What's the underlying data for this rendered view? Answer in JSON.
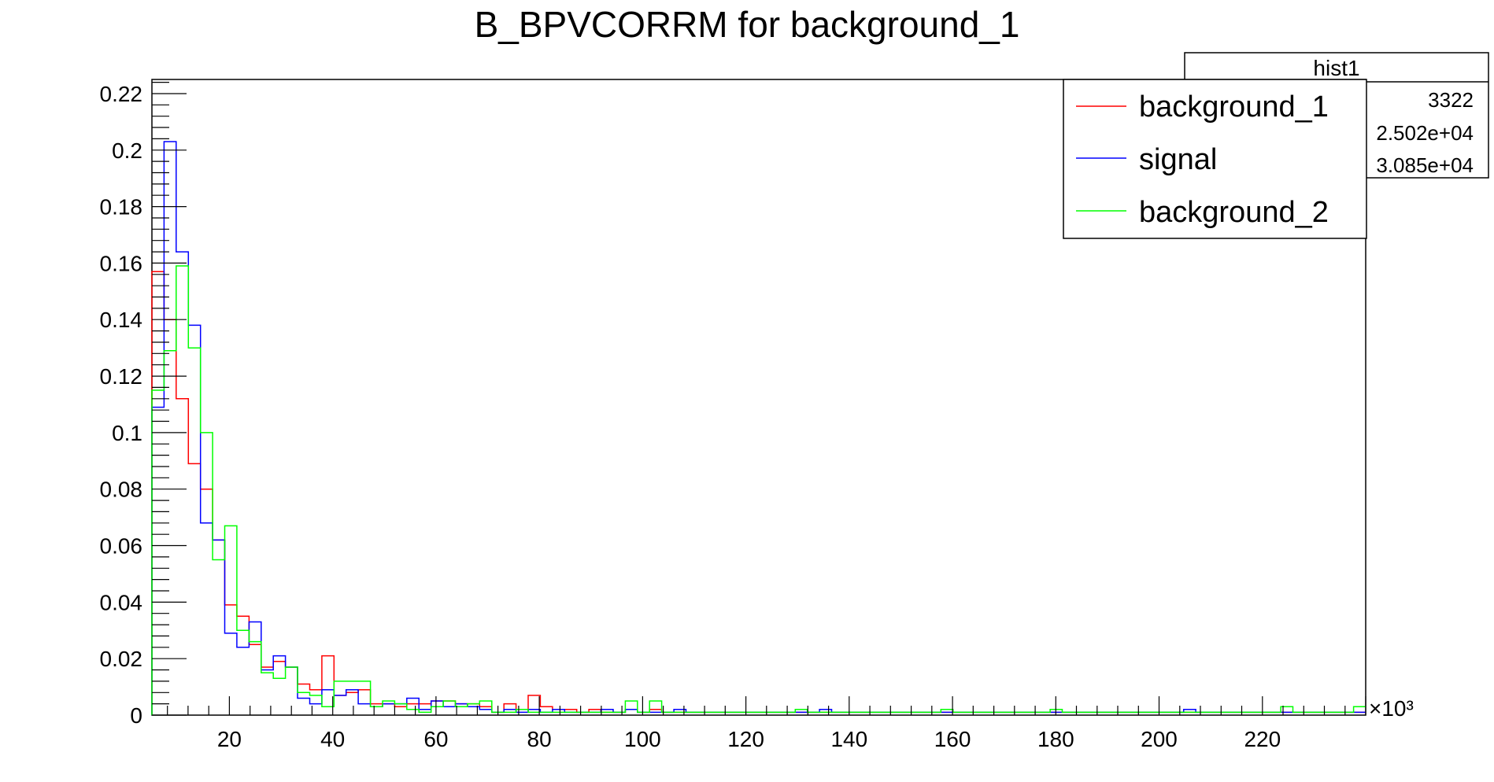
{
  "chart_data": {
    "type": "histogram",
    "title": "B_BPVCORRM for background_1",
    "xlabel": "",
    "ylabel": "",
    "x_multiplier": "×10³",
    "xlim": [
      5,
      240
    ],
    "ylim": [
      0,
      0.225
    ],
    "xticks": [
      20,
      40,
      60,
      80,
      100,
      120,
      140,
      160,
      180,
      200,
      220
    ],
    "yticks": [
      0,
      0.02,
      0.04,
      0.06,
      0.08,
      0.1,
      0.12,
      0.14,
      0.16,
      0.18,
      0.2,
      0.22
    ],
    "ytick_labels": [
      "0",
      "0.02",
      "0.04",
      "0.06",
      "0.08",
      "0.1",
      "0.12",
      "0.14",
      "0.16",
      "0.18",
      "0.2",
      "0.22"
    ],
    "bin_start": 5,
    "bin_width": 2.35,
    "series": [
      {
        "name": "background_1",
        "color": "#ff0000",
        "values": [
          0.157,
          0.14,
          0.112,
          0.089,
          0.08,
          0.062,
          0.039,
          0.035,
          0.025,
          0.017,
          0.019,
          0.017,
          0.011,
          0.009,
          0.021,
          0.007,
          0.008,
          0.009,
          0.004,
          0.004,
          0.003,
          0.004,
          0.004,
          0.005,
          0.005,
          0.004,
          0.004,
          0.003,
          0.001,
          0.004,
          0.002,
          0.007,
          0.003,
          0.002,
          0.002,
          0.001,
          0.002,
          0.001,
          0.001,
          0.002,
          0.001,
          0.002,
          0.001,
          0.001,
          0.001,
          0.001,
          0.001,
          0.001,
          0.001,
          0.001,
          0.001,
          0.001,
          0.001,
          0.001,
          0.001,
          0.001,
          0.001,
          0.001,
          0.001,
          0.001,
          0.001,
          0.001,
          0.001,
          0.001,
          0.001,
          0.001,
          0.001,
          0.001,
          0.001,
          0.001,
          0.001,
          0.001,
          0.001,
          0.001,
          0.001,
          0.001,
          0.001,
          0.001,
          0.001,
          0.001,
          0.001,
          0.001,
          0.001,
          0.001,
          0.001,
          0.001,
          0.001,
          0.001,
          0.001,
          0.001,
          0.001,
          0.001,
          0.001,
          0.001,
          0.001,
          0.001,
          0.001,
          0.001,
          0.001,
          0.001
        ]
      },
      {
        "name": "signal",
        "color": "#0000ff",
        "values": [
          0.109,
          0.203,
          0.164,
          0.138,
          0.068,
          0.062,
          0.029,
          0.024,
          0.033,
          0.016,
          0.021,
          0.017,
          0.006,
          0.004,
          0.009,
          0.007,
          0.009,
          0.004,
          0.003,
          0.004,
          0.004,
          0.006,
          0.002,
          0.005,
          0.003,
          0.004,
          0.003,
          0.002,
          0.001,
          0.002,
          0.001,
          0.002,
          0.001,
          0.002,
          0.001,
          0.001,
          0.001,
          0.002,
          0.001,
          0.002,
          0.001,
          0.001,
          0.001,
          0.002,
          0.001,
          0.001,
          0.001,
          0.001,
          0.001,
          0.001,
          0.001,
          0.001,
          0.001,
          0.001,
          0.001,
          0.002,
          0.001,
          0.001,
          0.001,
          0.001,
          0.001,
          0.001,
          0.001,
          0.001,
          0.001,
          0.001,
          0.001,
          0.001,
          0.001,
          0.001,
          0.001,
          0.001,
          0.001,
          0.001,
          0.001,
          0.001,
          0.001,
          0.001,
          0.001,
          0.001,
          0.001,
          0.001,
          0.001,
          0.001,
          0.001,
          0.002,
          0.001,
          0.001,
          0.001,
          0.001,
          0.001,
          0.001,
          0.001,
          0.001,
          0.001,
          0.001,
          0.001,
          0.001,
          0.001,
          0.001
        ]
      },
      {
        "name": "background_2",
        "color": "#00ff00",
        "values": [
          0.115,
          0.129,
          0.159,
          0.13,
          0.1,
          0.055,
          0.067,
          0.03,
          0.026,
          0.015,
          0.013,
          0.017,
          0.008,
          0.007,
          0.003,
          0.012,
          0.012,
          0.012,
          0.003,
          0.005,
          0.004,
          0.002,
          0.001,
          0.003,
          0.005,
          0.003,
          0.004,
          0.005,
          0.001,
          0.001,
          0.002,
          0.001,
          0.001,
          0.001,
          0.001,
          0.001,
          0.001,
          0.001,
          0.001,
          0.005,
          0.001,
          0.005,
          0.001,
          0.001,
          0.001,
          0.001,
          0.001,
          0.001,
          0.001,
          0.001,
          0.001,
          0.001,
          0.001,
          0.002,
          0.001,
          0.001,
          0.001,
          0.001,
          0.001,
          0.001,
          0.001,
          0.001,
          0.001,
          0.001,
          0.001,
          0.002,
          0.001,
          0.001,
          0.001,
          0.001,
          0.001,
          0.001,
          0.001,
          0.001,
          0.002,
          0.001,
          0.001,
          0.001,
          0.001,
          0.001,
          0.001,
          0.001,
          0.001,
          0.001,
          0.001,
          0.001,
          0.001,
          0.001,
          0.001,
          0.001,
          0.001,
          0.001,
          0.001,
          0.003,
          0.001,
          0.001,
          0.001,
          0.001,
          0.001,
          0.003
        ]
      }
    ],
    "legend": {
      "placement": "top-right",
      "entries": [
        "background_1",
        "signal",
        "background_2"
      ]
    },
    "stats_box": {
      "title": "hist1",
      "values": [
        "3322",
        "2.502e+04",
        "3.085e+04"
      ]
    }
  }
}
